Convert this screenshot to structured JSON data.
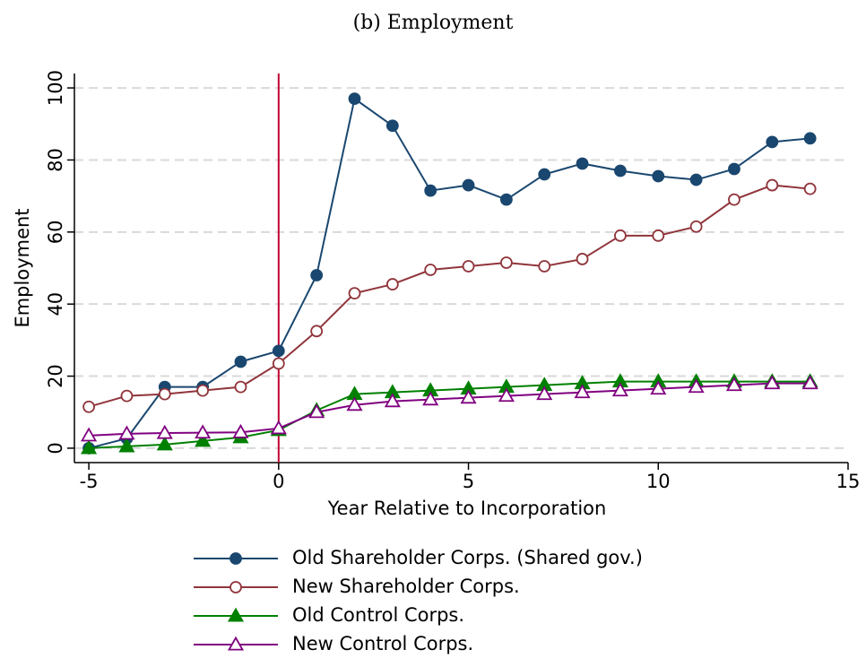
{
  "chart_data": {
    "type": "line",
    "title": "(b) Employment",
    "x_label": "Year Relative to Incorporation",
    "y_label": "Employment",
    "x": [
      -5,
      -4,
      -3,
      -2,
      -1,
      0,
      1,
      2,
      3,
      4,
      5,
      6,
      7,
      8,
      9,
      10,
      11,
      12,
      13,
      14
    ],
    "series": [
      {
        "name": "Old Shareholder Corps. (Shared gov.)",
        "color": "#1a476f",
        "marker": "circle-filled",
        "values": [
          0,
          2.7,
          17,
          17,
          24,
          27,
          48,
          97,
          89.5,
          71.5,
          73,
          69,
          76,
          79,
          77,
          75.5,
          74.5,
          77.5,
          85,
          86
        ]
      },
      {
        "name": "New Shareholder Corps.",
        "color": "#90353b",
        "marker": "circle-open",
        "values": [
          11.5,
          14.5,
          15,
          16,
          17,
          23.5,
          32.5,
          43,
          45.5,
          49.5,
          50.5,
          51.5,
          50.5,
          52.5,
          59,
          59,
          61.5,
          69,
          73,
          72
        ]
      },
      {
        "name": "Old Control Corps.",
        "color": "#008000",
        "marker": "triangle-filled",
        "values": [
          0,
          0.5,
          1,
          2,
          3,
          5,
          10.5,
          15,
          15.5,
          16,
          16.5,
          17,
          17.5,
          18,
          18.5,
          18.5,
          18.5,
          18.5,
          18.5,
          18.5
        ]
      },
      {
        "name": "New Control Corps.",
        "color": "#800080",
        "marker": "triangle-open",
        "values": [
          3.5,
          4,
          4.2,
          4.3,
          4.4,
          5.5,
          10,
          12,
          13,
          13.5,
          14,
          14.5,
          15,
          15.5,
          16,
          16.5,
          17,
          17.5,
          18,
          18
        ]
      }
    ],
    "xlim": [
      -5.38,
      15
    ],
    "xticks": [
      -5,
      0,
      5,
      10,
      15
    ],
    "ylim": [
      -4,
      104
    ],
    "yticks": [
      0,
      20,
      40,
      60,
      80,
      100
    ],
    "grid": true,
    "vline": 0,
    "vline_color": "#c10534",
    "legend": "bottom"
  }
}
